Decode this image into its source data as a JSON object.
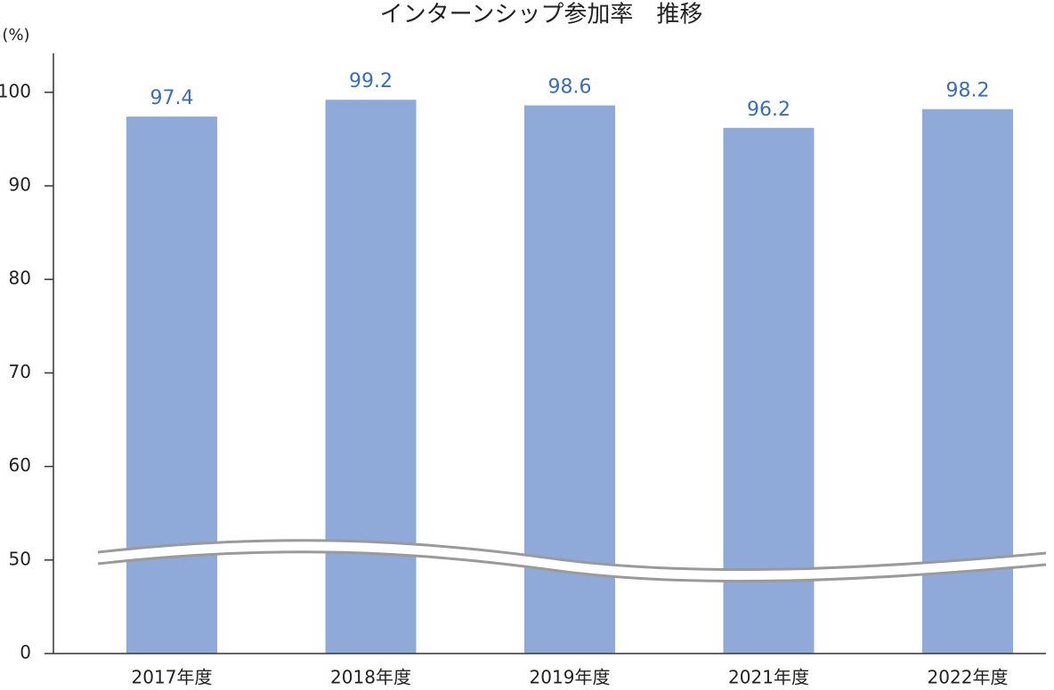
{
  "chart_data": {
    "type": "bar",
    "title": "インターンシップ参加率　推移",
    "y_label": "(%)",
    "categories": [
      "2017年度",
      "2018年度",
      "2019年度",
      "2021年度",
      "2022年度"
    ],
    "values": [
      97.4,
      99.2,
      98.6,
      96.2,
      98.2
    ],
    "color": "#8faad9",
    "label_color": "#3a6fb0",
    "ylim": [
      0,
      104
    ],
    "yticks": [
      0,
      50,
      60,
      70,
      80,
      90,
      100
    ],
    "grid": false
  }
}
